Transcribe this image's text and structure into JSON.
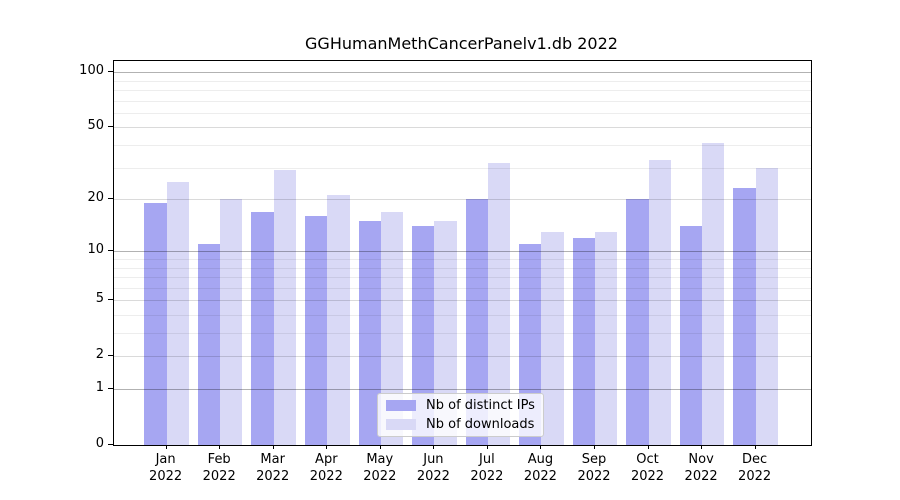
{
  "chart_data": {
    "type": "bar",
    "title": "GGHumanMethCancerPanelv1.db 2022",
    "y_scale": "log1p",
    "grid": "on",
    "legend_position": "lower center",
    "categories": [
      "Jan",
      "Feb",
      "Mar",
      "Apr",
      "May",
      "Jun",
      "Jul",
      "Aug",
      "Sep",
      "Oct",
      "Nov",
      "Dec"
    ],
    "year_label": "2022",
    "series": [
      {
        "name": "Nb of distinct IPs",
        "color": "#a6a6f2",
        "values": [
          19,
          11,
          17,
          16,
          15,
          14,
          20,
          11,
          12,
          20,
          14,
          23
        ]
      },
      {
        "name": "Nb of downloads",
        "color": "#d9d9f6",
        "values": [
          25,
          20,
          29,
          21,
          17,
          15,
          32,
          13,
          13,
          33,
          41,
          30
        ]
      }
    ],
    "yticks": [
      0,
      1,
      2,
      5,
      10,
      20,
      50,
      100
    ],
    "ylim": [
      0,
      115
    ]
  }
}
